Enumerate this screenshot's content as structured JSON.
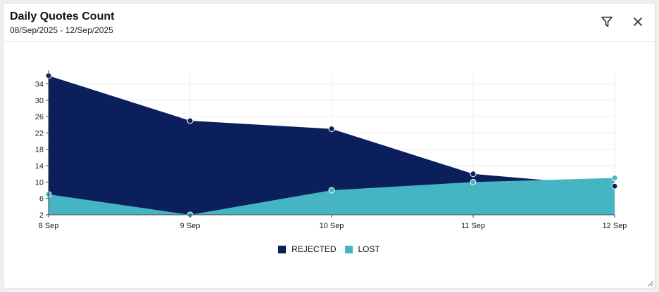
{
  "header": {
    "title": "Daily Quotes Count",
    "subtitle": "08/Sep/2025 - 12/Sep/2025"
  },
  "icons": {
    "filter": "filter-icon",
    "close": "close-icon"
  },
  "chart_data": {
    "type": "area",
    "categories": [
      "8 Sep",
      "9 Sep",
      "10 Sep",
      "11 Sep",
      "12 Sep"
    ],
    "y_ticks": [
      2,
      6,
      10,
      14,
      18,
      22,
      26,
      30,
      34
    ],
    "ylim": [
      2,
      37
    ],
    "grid": true,
    "legend_position": "bottom",
    "series": [
      {
        "name": "REJECTED",
        "values": [
          36,
          25,
          23,
          12,
          9
        ],
        "color": "#0a1f5c"
      },
      {
        "name": "LOST",
        "values": [
          7,
          2,
          8,
          10,
          11
        ],
        "color": "#45b5c4"
      }
    ]
  }
}
